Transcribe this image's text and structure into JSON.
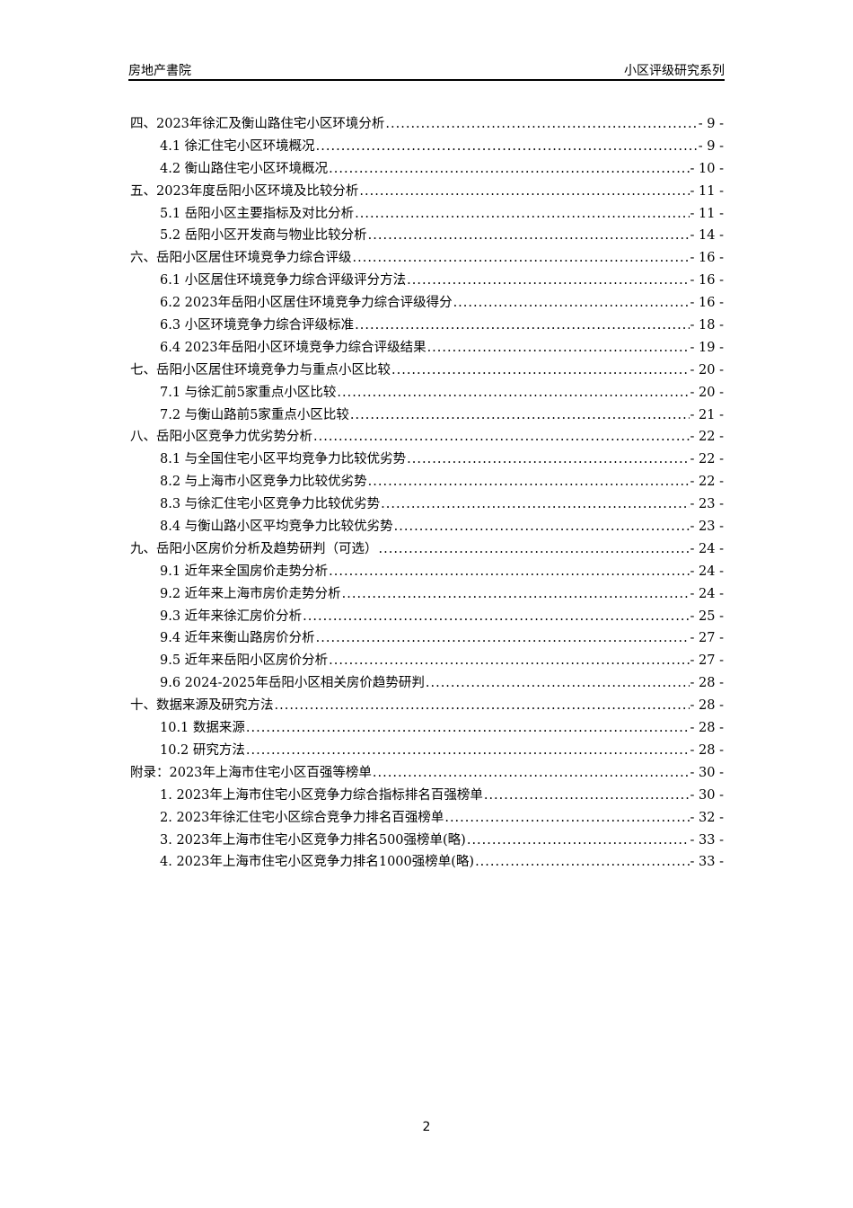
{
  "header": {
    "left": "房地产書院",
    "right": "小区评级研究系列"
  },
  "toc": [
    {
      "level": 1,
      "title": "四、2023年徐汇及衡山路住宅小区环境分析",
      "page": "- 9 -"
    },
    {
      "level": 2,
      "title": "4.1 徐汇住宅小区环境概况",
      "page": "- 9 -"
    },
    {
      "level": 2,
      "title": "4.2 衡山路住宅小区环境概况",
      "page": "- 10 -"
    },
    {
      "level": 1,
      "title": "五、2023年度岳阳小区环境及比较分析",
      "page": "- 11 -"
    },
    {
      "level": 2,
      "title": "5.1 岳阳小区主要指标及对比分析",
      "page": "- 11 -"
    },
    {
      "level": 2,
      "title": "5.2 岳阳小区开发商与物业比较分析",
      "page": "- 14 -"
    },
    {
      "level": 1,
      "title": "六、岳阳小区居住环境竞争力综合评级",
      "page": "- 16 -"
    },
    {
      "level": 2,
      "title": "6.1 小区居住环境竞争力综合评级评分方法",
      "page": "- 16 -"
    },
    {
      "level": 2,
      "title": "6.2 2023年岳阳小区居住环境竞争力综合评级得分",
      "page": "- 16 -"
    },
    {
      "level": 2,
      "title": "6.3 小区环境竞争力综合评级标准",
      "page": "- 18 -"
    },
    {
      "level": 2,
      "title": "6.4 2023年岳阳小区环境竞争力综合评级结果",
      "page": "- 19 -"
    },
    {
      "level": 1,
      "title": "七、岳阳小区居住环境竞争力与重点小区比较",
      "page": "- 20 -"
    },
    {
      "level": 2,
      "title": "7.1 与徐汇前5家重点小区比较",
      "page": "- 20 -"
    },
    {
      "level": 2,
      "title": "7.2 与衡山路前5家重点小区比较",
      "page": "- 21 -"
    },
    {
      "level": 1,
      "title": "八、岳阳小区竞争力优劣势分析",
      "page": "- 22 -"
    },
    {
      "level": 2,
      "title": "8.1 与全国住宅小区平均竞争力比较优劣势",
      "page": "- 22 -"
    },
    {
      "level": 2,
      "title": "8.2 与上海市小区竞争力比较优劣势",
      "page": "- 22 -"
    },
    {
      "level": 2,
      "title": "8.3 与徐汇住宅小区竞争力比较优劣势",
      "page": "- 23 -"
    },
    {
      "level": 2,
      "title": "8.4 与衡山路小区平均竞争力比较优劣势",
      "page": "- 23 -"
    },
    {
      "level": 1,
      "title": "九、岳阳小区房价分析及趋势研判（可选）",
      "page": "- 24 -"
    },
    {
      "level": 2,
      "title": "9.1 近年来全国房价走势分析",
      "page": "- 24 -"
    },
    {
      "level": 2,
      "title": "9.2 近年来上海市房价走势分析",
      "page": "- 24 -"
    },
    {
      "level": 2,
      "title": "9.3 近年来徐汇房价分析",
      "page": "- 25 -"
    },
    {
      "level": 2,
      "title": "9.4 近年来衡山路房价分析",
      "page": "- 27 -"
    },
    {
      "level": 2,
      "title": "9.5 近年来岳阳小区房价分析",
      "page": "- 27 -"
    },
    {
      "level": 2,
      "title": "9.6 2024-2025年岳阳小区相关房价趋势研判",
      "page": "- 28 -"
    },
    {
      "level": 1,
      "title": "十、数据来源及研究方法",
      "page": "- 28 -"
    },
    {
      "level": 2,
      "title": "10.1 数据来源",
      "page": "- 28 -"
    },
    {
      "level": 2,
      "title": "10.2 研究方法",
      "page": "- 28 -"
    },
    {
      "level": 1,
      "title": "附录：2023年上海市住宅小区百强等榜单",
      "page": "- 30 -"
    },
    {
      "level": 2,
      "title": "1.  2023年上海市住宅小区竞争力综合指标排名百强榜单",
      "page": "- 30 -"
    },
    {
      "level": 2,
      "title": "2.  2023年徐汇住宅小区综合竞争力排名百强榜单",
      "page": "- 32 -"
    },
    {
      "level": 2,
      "title": "3.  2023年上海市住宅小区竞争力排名500强榜单(略)",
      "page": "- 33 -"
    },
    {
      "level": 2,
      "title": "4.  2023年上海市住宅小区竞争力排名1000强榜单(略)",
      "page": "- 33 -"
    }
  ],
  "footer": {
    "page_number": "2"
  }
}
